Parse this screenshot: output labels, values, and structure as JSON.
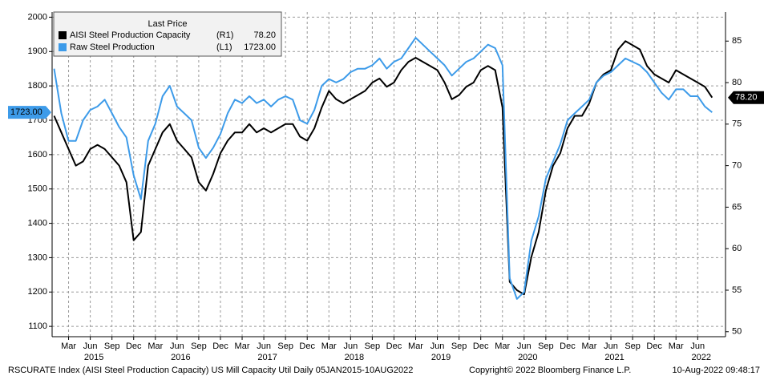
{
  "chart_data": {
    "type": "line",
    "legend_title": "Last Price",
    "x": [
      "2015-01",
      "2015-02",
      "2015-03",
      "2015-04",
      "2015-05",
      "2015-06",
      "2015-07",
      "2015-08",
      "2015-09",
      "2015-10",
      "2015-11",
      "2015-12",
      "2016-01",
      "2016-02",
      "2016-03",
      "2016-04",
      "2016-05",
      "2016-06",
      "2016-07",
      "2016-08",
      "2016-09",
      "2016-10",
      "2016-11",
      "2016-12",
      "2017-01",
      "2017-02",
      "2017-03",
      "2017-04",
      "2017-05",
      "2017-06",
      "2017-07",
      "2017-08",
      "2017-09",
      "2017-10",
      "2017-11",
      "2017-12",
      "2018-01",
      "2018-02",
      "2018-03",
      "2018-04",
      "2018-05",
      "2018-06",
      "2018-07",
      "2018-08",
      "2018-09",
      "2018-10",
      "2018-11",
      "2018-12",
      "2019-01",
      "2019-02",
      "2019-03",
      "2019-04",
      "2019-05",
      "2019-06",
      "2019-07",
      "2019-08",
      "2019-09",
      "2019-10",
      "2019-11",
      "2019-12",
      "2020-01",
      "2020-02",
      "2020-03",
      "2020-04",
      "2020-05",
      "2020-06",
      "2020-07",
      "2020-08",
      "2020-09",
      "2020-10",
      "2020-11",
      "2020-12",
      "2021-01",
      "2021-02",
      "2021-03",
      "2021-04",
      "2021-05",
      "2021-06",
      "2021-07",
      "2021-08",
      "2021-09",
      "2021-10",
      "2021-11",
      "2021-12",
      "2022-01",
      "2022-02",
      "2022-03",
      "2022-04",
      "2022-05",
      "2022-06",
      "2022-07",
      "2022-08"
    ],
    "series": [
      {
        "name": "AISI Steel Production Capacity",
        "axis_label": "(R1)",
        "last_value_label": "78.20",
        "color": "#000000",
        "axis": "y2",
        "values": [
          76,
          74,
          72,
          70,
          70.5,
          72,
          72.5,
          72,
          71,
          70,
          68,
          61,
          62,
          70,
          72,
          74,
          75,
          73,
          72,
          71,
          68,
          67,
          69,
          71.5,
          73,
          74,
          74,
          75,
          74,
          74.5,
          74,
          74.5,
          75,
          75,
          73.5,
          73,
          74.5,
          77,
          79,
          78,
          77.5,
          78,
          78.5,
          79,
          80,
          80.5,
          79.5,
          80,
          81.5,
          82.5,
          83,
          82.5,
          82,
          81.5,
          80,
          78,
          78.5,
          79.5,
          80,
          81.5,
          82,
          81.5,
          77,
          56,
          55,
          54.5,
          59,
          62,
          67,
          70,
          71.5,
          74.5,
          76,
          76,
          77.5,
          80,
          81,
          81.5,
          84,
          85,
          84.5,
          84,
          82,
          81,
          80.5,
          80,
          81.5,
          81,
          80.5,
          80,
          79.5,
          78.2
        ]
      },
      {
        "name": "Raw Steel Production",
        "axis_label": "(L1)",
        "last_value_label": "1723.00",
        "color": "#3d9be9",
        "axis": "y",
        "values": [
          1850,
          1720,
          1640,
          1640,
          1700,
          1730,
          1740,
          1760,
          1720,
          1680,
          1650,
          1540,
          1470,
          1640,
          1690,
          1770,
          1800,
          1740,
          1720,
          1700,
          1620,
          1590,
          1620,
          1660,
          1720,
          1760,
          1750,
          1770,
          1750,
          1760,
          1740,
          1760,
          1770,
          1760,
          1700,
          1690,
          1730,
          1800,
          1820,
          1810,
          1820,
          1840,
          1850,
          1850,
          1860,
          1880,
          1850,
          1870,
          1880,
          1910,
          1940,
          1920,
          1900,
          1880,
          1860,
          1830,
          1850,
          1870,
          1880,
          1900,
          1920,
          1910,
          1860,
          1240,
          1180,
          1200,
          1350,
          1420,
          1530,
          1580,
          1630,
          1700,
          1720,
          1740,
          1760,
          1810,
          1830,
          1840,
          1860,
          1880,
          1870,
          1860,
          1840,
          1810,
          1780,
          1760,
          1790,
          1790,
          1770,
          1770,
          1740,
          1723
        ]
      }
    ],
    "ylim": [
      1070,
      2015
    ],
    "yticks": [
      1100,
      1200,
      1300,
      1400,
      1500,
      1600,
      1700,
      1800,
      1900,
      2000
    ],
    "y2lim": [
      49.4,
      88.5
    ],
    "y2ticks": [
      50,
      55,
      60,
      65,
      70,
      75,
      80,
      85
    ],
    "xticks": [
      {
        "value": "2015-03",
        "label": "Mar"
      },
      {
        "value": "2015-06",
        "label": "Jun"
      },
      {
        "value": "2015-09",
        "label": "Sep"
      },
      {
        "value": "2015-12",
        "label": "Dec"
      },
      {
        "value": "2016-03",
        "label": "Mar"
      },
      {
        "value": "2016-06",
        "label": "Jun"
      },
      {
        "value": "2016-09",
        "label": "Sep"
      },
      {
        "value": "2016-12",
        "label": "Dec"
      },
      {
        "value": "2017-03",
        "label": "Mar"
      },
      {
        "value": "2017-06",
        "label": "Jun"
      },
      {
        "value": "2017-09",
        "label": "Sep"
      },
      {
        "value": "2017-12",
        "label": "Dec"
      },
      {
        "value": "2018-03",
        "label": "Mar"
      },
      {
        "value": "2018-06",
        "label": "Jun"
      },
      {
        "value": "2018-09",
        "label": "Sep"
      },
      {
        "value": "2018-12",
        "label": "Dec"
      },
      {
        "value": "2019-03",
        "label": "Mar"
      },
      {
        "value": "2019-06",
        "label": "Jun"
      },
      {
        "value": "2019-09",
        "label": "Sep"
      },
      {
        "value": "2019-12",
        "label": "Dec"
      },
      {
        "value": "2020-03",
        "label": "Mar"
      },
      {
        "value": "2020-06",
        "label": "Jun"
      },
      {
        "value": "2020-09",
        "label": "Sep"
      },
      {
        "value": "2020-12",
        "label": "Dec"
      },
      {
        "value": "2021-03",
        "label": "Mar"
      },
      {
        "value": "2021-06",
        "label": "Jun"
      },
      {
        "value": "2021-09",
        "label": "Sep"
      },
      {
        "value": "2021-12",
        "label": "Dec"
      },
      {
        "value": "2022-03",
        "label": "Mar"
      },
      {
        "value": "2022-06",
        "label": "Jun"
      }
    ],
    "year_labels": [
      "2015",
      "2016",
      "2017",
      "2018",
      "2019",
      "2020",
      "2021",
      "2022"
    ],
    "grid": true,
    "footer": [
      "RSCURATE Index (AISI Steel Production Capacity) US Mill Capacity Util  Daily 05JAN2015-10AUG2022",
      "Copyright© 2022 Bloomberg Finance L.P.",
      "10-Aug-2022 09:48:17"
    ]
  }
}
